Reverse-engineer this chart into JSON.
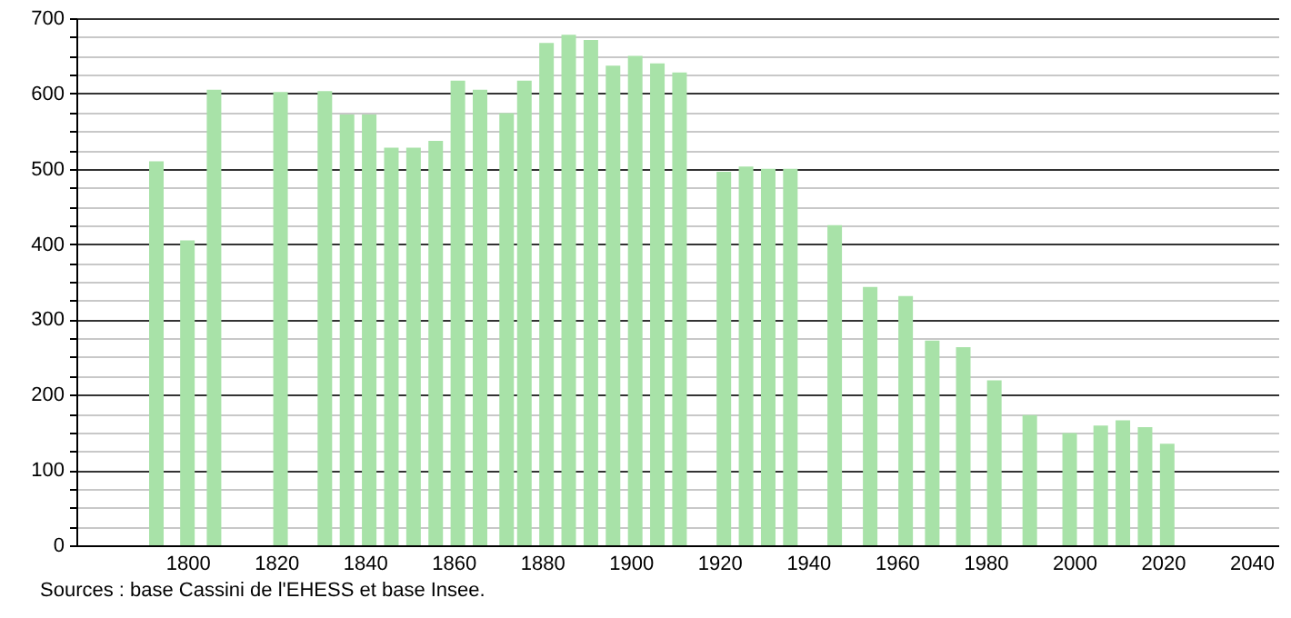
{
  "chart_data": {
    "type": "bar",
    "x": [
      1793,
      1800,
      1806,
      1821,
      1831,
      1836,
      1841,
      1846,
      1851,
      1856,
      1861,
      1866,
      1872,
      1876,
      1881,
      1886,
      1891,
      1896,
      1901,
      1906,
      1911,
      1921,
      1926,
      1931,
      1936,
      1946,
      1954,
      1962,
      1968,
      1975,
      1982,
      1990,
      1999,
      2006,
      2011,
      2016,
      2021
    ],
    "values": [
      510,
      405,
      605,
      602,
      603,
      572,
      572,
      528,
      528,
      537,
      617,
      605,
      574,
      617,
      667,
      678,
      671,
      637,
      650,
      640,
      628,
      496,
      503,
      500,
      500,
      425,
      343,
      331,
      272,
      263,
      219,
      173,
      149,
      159,
      166,
      157,
      135
    ],
    "color": "#a8e2a8",
    "xlim": [
      1777,
      2044
    ],
    "xticks": [
      1800,
      1820,
      1840,
      1860,
      1880,
      1900,
      1920,
      1940,
      1960,
      1980,
      2000,
      2020,
      2040
    ],
    "ylim": [
      0,
      700
    ],
    "yticks": [
      0,
      {
        "value": 25,
        "label": null
      },
      {
        "value": 50,
        "label": null
      },
      {
        "value": 75,
        "label": null
      },
      100,
      {
        "value": 125,
        "label": null
      },
      {
        "value": 150,
        "label": null
      },
      {
        "value": 175,
        "label": null
      },
      200,
      {
        "value": 225,
        "label": null
      },
      {
        "value": 250,
        "label": null
      },
      {
        "value": 275,
        "label": null
      },
      300,
      {
        "value": 325,
        "label": null
      },
      {
        "value": 350,
        "label": null
      },
      {
        "value": 375,
        "label": null
      },
      400,
      {
        "value": 425,
        "label": null
      },
      {
        "value": 450,
        "label": null
      },
      {
        "value": 475,
        "label": null
      },
      500,
      {
        "value": 525,
        "label": null
      },
      {
        "value": 550,
        "label": null
      },
      {
        "value": 575,
        "label": null
      },
      600,
      {
        "value": 625,
        "label": null
      },
      {
        "value": 650,
        "label": null
      },
      {
        "value": 675,
        "label": null
      },
      700
    ],
    "grid": "y",
    "annotations": [
      "Sources : base Cassini de l'EHESS et base Insee."
    ]
  }
}
